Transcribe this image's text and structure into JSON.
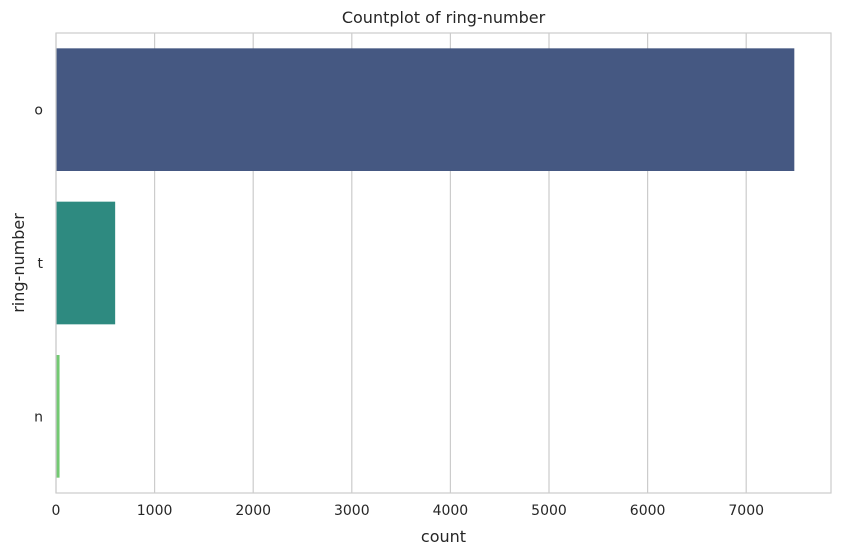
{
  "chart_data": {
    "type": "bar",
    "orientation": "horizontal",
    "title": "Countplot of ring-number",
    "xlabel": "count",
    "ylabel": "ring-number",
    "categories": [
      "o",
      "t",
      "n"
    ],
    "values": [
      7488,
      600,
      36
    ],
    "colors": [
      "#455882",
      "#2e8a80",
      "#73c972"
    ],
    "xlim": [
      0,
      7860
    ],
    "xticks": [
      0,
      1000,
      2000,
      3000,
      4000,
      5000,
      6000,
      7000
    ],
    "grid": true,
    "legend": "none"
  }
}
